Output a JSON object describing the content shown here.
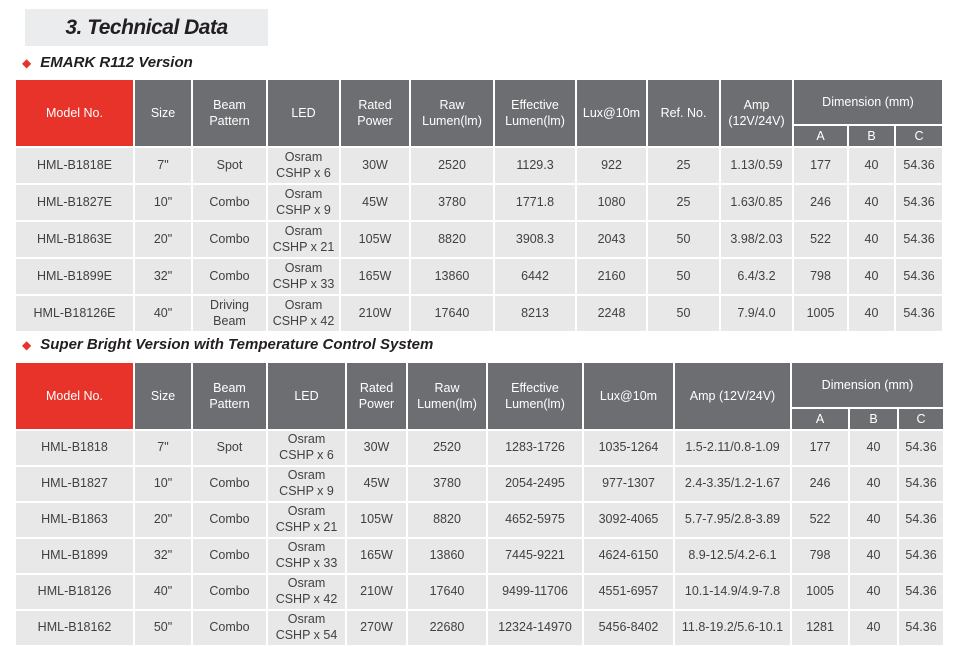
{
  "page": {
    "title": "3.  Technical Data"
  },
  "colors": {
    "accent_red": "#e8332a",
    "header_gray": "#6d6e71",
    "row_bg": "#e8e8e9",
    "title_bg": "#ebeced"
  },
  "sections": [
    {
      "bullet": "◆",
      "heading": "EMARK R112 Version",
      "table": {
        "columns": [
          {
            "key": "model-no",
            "label": "Model No.",
            "accent": true
          },
          {
            "key": "size",
            "label": "Size"
          },
          {
            "key": "beam-pattern",
            "label": "Beam\nPattern"
          },
          {
            "key": "led",
            "label": "LED"
          },
          {
            "key": "rated-power",
            "label": "Rated\nPower"
          },
          {
            "key": "raw-lumen",
            "label": "Raw\nLumen(lm)"
          },
          {
            "key": "effective-lumen",
            "label": "Effective\nLumen(lm)"
          },
          {
            "key": "lux-10m",
            "label": "Lux@10m"
          },
          {
            "key": "ref-no",
            "label": "Ref. No."
          },
          {
            "key": "amp",
            "label": "Amp\n(12V/24V)"
          }
        ],
        "dimension_group": {
          "label": "Dimension (mm)",
          "subcolumns": [
            "A",
            "B",
            "C"
          ]
        },
        "rows": [
          [
            "HML-B1818E",
            "7\"",
            "Spot",
            "Osram\nCSHP x 6",
            "30W",
            "2520",
            "1129.3",
            "922",
            "25",
            "1.13/0.59",
            "177",
            "40",
            "54.36"
          ],
          [
            "HML-B1827E",
            "10\"",
            "Combo",
            "Osram\nCSHP x 9",
            "45W",
            "3780",
            "1771.8",
            "1080",
            "25",
            "1.63/0.85",
            "246",
            "40",
            "54.36"
          ],
          [
            "HML-B1863E",
            "20\"",
            "Combo",
            "Osram\nCSHP x 21",
            "105W",
            "8820",
            "3908.3",
            "2043",
            "50",
            "3.98/2.03",
            "522",
            "40",
            "54.36"
          ],
          [
            "HML-B1899E",
            "32\"",
            "Combo",
            "Osram\nCSHP x 33",
            "165W",
            "13860",
            "6442",
            "2160",
            "50",
            "6.4/3.2",
            "798",
            "40",
            "54.36"
          ],
          [
            "HML-B18126E",
            "40\"",
            "Driving\nBeam",
            "Osram\nCSHP x 42",
            "210W",
            "17640",
            "8213",
            "2248",
            "50",
            "7.9/4.0",
            "1005",
            "40",
            "54.36"
          ]
        ]
      }
    },
    {
      "bullet": "◆",
      "heading": "Super Bright Version with Temperature Control System",
      "table": {
        "columns": [
          {
            "key": "model-no",
            "label": "Model No.",
            "accent": true
          },
          {
            "key": "size",
            "label": "Size"
          },
          {
            "key": "beam-pattern",
            "label": "Beam\nPattern"
          },
          {
            "key": "led",
            "label": "LED"
          },
          {
            "key": "rated-power",
            "label": "Rated\nPower"
          },
          {
            "key": "raw-lumen",
            "label": "Raw\nLumen(lm)"
          },
          {
            "key": "effective-lumen",
            "label": "Effective\nLumen(lm)"
          },
          {
            "key": "lux-10m",
            "label": "Lux@10m"
          },
          {
            "key": "amp",
            "label": "Amp (12V/24V)"
          }
        ],
        "dimension_group": {
          "label": "Dimension (mm)",
          "subcolumns": [
            "A",
            "B",
            "C"
          ]
        },
        "rows": [
          [
            "HML-B1818",
            "7\"",
            "Spot",
            "Osram\nCSHP x 6",
            "30W",
            "2520",
            "1283-1726",
            "1035-1264",
            "1.5-2.11/0.8-1.09",
            "177",
            "40",
            "54.36"
          ],
          [
            "HML-B1827",
            "10\"",
            "Combo",
            "Osram\nCSHP x 9",
            "45W",
            "3780",
            "2054-2495",
            "977-1307",
            "2.4-3.35/1.2-1.67",
            "246",
            "40",
            "54.36"
          ],
          [
            "HML-B1863",
            "20\"",
            "Combo",
            "Osram\nCSHP x 21",
            "105W",
            "8820",
            "4652-5975",
            "3092-4065",
            "5.7-7.95/2.8-3.89",
            "522",
            "40",
            "54.36"
          ],
          [
            "HML-B1899",
            "32\"",
            "Combo",
            "Osram\nCSHP x 33",
            "165W",
            "13860",
            "7445-9221",
            "4624-6150",
            "8.9-12.5/4.2-6.1",
            "798",
            "40",
            "54.36"
          ],
          [
            "HML-B18126",
            "40\"",
            "Combo",
            "Osram\nCSHP x 42",
            "210W",
            "17640",
            "9499-11706",
            "4551-6957",
            "10.1-14.9/4.9-7.8",
            "1005",
            "40",
            "54.36"
          ],
          [
            "HML-B18162",
            "50\"",
            "Combo",
            "Osram\nCSHP x 54",
            "270W",
            "22680",
            "12324-14970",
            "5456-8402",
            "11.8-19.2/5.6-10.1",
            "1281",
            "40",
            "54.36"
          ]
        ]
      }
    }
  ]
}
